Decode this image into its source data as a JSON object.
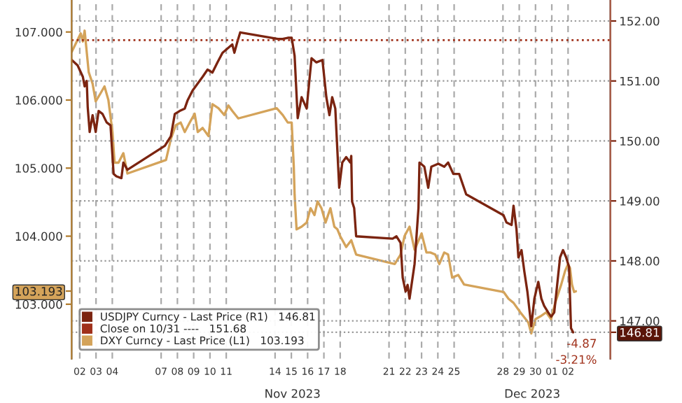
{
  "chart_data": {
    "type": "line",
    "series": [
      {
        "name": "USDJPY Curncy - Last Price (R1)   146.81",
        "color": "#7b2410",
        "axis": "y2",
        "x": [
          "2023-11-01T12:14",
          "2023-11-01T20:53",
          "2023-11-02T04:34",
          "2023-11-02T07:12",
          "2023-11-02T10:19",
          "2023-11-02T11:46",
          "2023-11-02T14:38",
          "2023-11-02T18:58",
          "2023-11-02T23:31",
          "2023-11-03T03:50",
          "2023-11-03T09:36",
          "2023-11-03T15:36",
          "2023-11-03T21:22",
          "2023-11-04T01:55",
          "2023-11-04T06:00",
          "2023-11-04T13:26",
          "2023-11-04T16:19",
          "2023-11-04T22:19",
          "2023-11-07T05:31",
          "2023-11-07T14:24",
          "2023-11-07T20:10",
          "2023-11-08T03:22",
          "2023-11-08T10:48",
          "2023-11-08T15:07",
          "2023-11-08T22:19",
          "2023-11-09T06:00",
          "2023-11-09T13:12",
          "2023-11-09T20:24",
          "2023-11-10T03:36",
          "2023-11-10T11:02",
          "2023-11-10T18:29",
          "2023-11-11T01:41",
          "2023-11-11T08:53",
          "2023-11-11T12:00",
          "2023-11-11T16:19",
          "2023-11-11T20:38",
          "2023-11-14T04:05",
          "2023-11-14T11:17",
          "2023-11-14T18:43",
          "2023-11-15T00:29",
          "2023-11-15T04:48",
          "2023-11-15T09:22",
          "2023-11-15T15:07",
          "2023-11-15T22:34",
          "2023-11-16T05:46",
          "2023-11-16T12:58",
          "2023-11-16T21:50",
          "2023-11-17T03:36",
          "2023-11-17T08:10",
          "2023-11-17T12:14",
          "2023-11-17T16:48",
          "2023-11-17T22:34",
          "2023-11-18T03:07",
          "2023-11-18T08:53",
          "2023-11-18T14:53",
          "2023-11-18T16:19",
          "2023-11-18T17:31",
          "2023-11-18T20:38",
          "2023-11-18T23:31",
          "2023-11-21T05:17",
          "2023-11-21T11:02",
          "2023-11-21T17:02",
          "2023-11-21T20:10",
          "2023-11-22T00:29",
          "2023-11-22T03:22",
          "2023-11-22T06:14",
          "2023-11-22T13:41",
          "2023-11-22T19:26",
          "2023-11-22T20:53",
          "2023-11-23T04:05",
          "2023-11-23T09:50",
          "2023-11-23T14:24",
          "2023-11-24T00:43",
          "2023-11-24T09:22",
          "2023-11-24T15:07",
          "2023-11-24T22:48",
          "2023-11-25T07:26",
          "2023-11-25T17:46",
          "2023-11-28T00:58",
          "2023-11-28T05:17",
          "2023-11-28T12:43",
          "2023-11-28T15:36",
          "2023-11-28T19:55",
          "2023-11-28T22:48",
          "2023-11-29T03:22",
          "2023-11-29T07:26",
          "2023-11-29T12:00",
          "2023-11-29T17:46",
          "2023-11-29T22:19",
          "2023-11-30T04:05",
          "2023-11-30T08:38",
          "2023-11-30T12:43",
          "2023-11-30T18:43",
          "2023-11-30T23:02",
          "2023-12-01T03:36",
          "2023-12-01T07:55",
          "2023-12-01T12:14",
          "2023-12-01T16:34",
          "2023-12-01T21:07",
          "2023-12-02T01:26",
          "2023-12-02T04:19",
          "2023-12-02T07:26"
        ],
        "values": [
          151.35,
          151.26,
          151.07,
          150.91,
          151.0,
          150.56,
          150.15,
          150.43,
          150.15,
          150.5,
          150.45,
          150.31,
          150.26,
          149.45,
          149.41,
          149.38,
          149.64,
          149.52,
          149.92,
          150.08,
          150.45,
          150.5,
          150.54,
          150.68,
          150.84,
          150.96,
          151.07,
          151.19,
          151.14,
          151.31,
          151.47,
          151.54,
          151.61,
          151.47,
          151.65,
          151.81,
          151.7,
          151.7,
          151.72,
          151.72,
          151.42,
          150.38,
          150.73,
          150.54,
          151.38,
          151.31,
          151.35,
          150.73,
          150.43,
          150.73,
          150.54,
          149.22,
          149.64,
          149.73,
          149.64,
          149.75,
          148.99,
          148.88,
          148.41,
          148.37,
          148.41,
          148.3,
          147.72,
          147.49,
          147.6,
          147.37,
          147.95,
          148.88,
          149.64,
          149.57,
          149.22,
          149.57,
          149.62,
          149.57,
          149.64,
          149.45,
          149.45,
          149.11,
          148.76,
          148.64,
          148.6,
          148.92,
          148.53,
          148.06,
          148.18,
          147.83,
          147.49,
          146.91,
          147.37,
          147.65,
          147.37,
          147.25,
          147.14,
          147.07,
          147.14,
          147.6,
          148.06,
          148.18,
          148.06,
          147.9,
          146.88,
          146.81
        ]
      },
      {
        "name": "DXY Curncy - Last Price (L1)   103.193",
        "color": "#d4a35a",
        "x": [
          "2023-11-01T12:14",
          "2023-11-02T01:26",
          "2023-11-02T04:34",
          "2023-11-02T07:12",
          "2023-11-02T13:12",
          "2023-11-02T18:58",
          "2023-11-02T23:31",
          "2023-11-03T06:43",
          "2023-11-03T12:29",
          "2023-11-03T18:14",
          "2023-11-04T00:14",
          "2023-11-04T03:22",
          "2023-11-04T09:07",
          "2023-11-04T16:19",
          "2023-11-04T22:19",
          "2023-11-07T07:12",
          "2023-11-07T14:24",
          "2023-11-07T21:36",
          "2023-11-08T04:48",
          "2023-11-08T10:48",
          "2023-11-08T18:14",
          "2023-11-09T01:26",
          "2023-11-09T06:00",
          "2023-11-09T13:12",
          "2023-11-09T21:50",
          "2023-11-10T03:36",
          "2023-11-10T12:29",
          "2023-11-10T21:07",
          "2023-11-11T03:07",
          "2023-11-11T08:53",
          "2023-11-11T17:46",
          "2023-11-14T02:24",
          "2023-11-14T11:17",
          "2023-11-14T18:43",
          "2023-11-15T00:29",
          "2023-11-15T03:36",
          "2023-11-15T04:48",
          "2023-11-15T07:41",
          "2023-11-15T15:07",
          "2023-11-15T22:34",
          "2023-11-16T04:19",
          "2023-11-16T10:05",
          "2023-11-16T14:38",
          "2023-11-16T20:24",
          "2023-11-17T02:24",
          "2023-11-17T09:36",
          "2023-11-17T15:22",
          "2023-11-17T19:55",
          "2023-11-18T00:00",
          "2023-11-18T08:53",
          "2023-11-18T16:19",
          "2023-11-18T23:31",
          "2023-11-21T08:24",
          "2023-11-21T17:02",
          "2023-11-21T22:48",
          "2023-11-22T06:14",
          "2023-11-22T13:41",
          "2023-11-23T00:00",
          "2023-11-23T07:12",
          "2023-11-23T12:58",
          "2023-11-23T20:10",
          "2023-11-24T02:10",
          "2023-11-24T09:22",
          "2023-11-24T15:07",
          "2023-11-24T21:07",
          "2023-11-25T06:00",
          "2023-11-25T14:38",
          "2023-11-28T00:58",
          "2023-11-28T08:10",
          "2023-11-28T15:36",
          "2023-11-29T01:41",
          "2023-11-29T13:26",
          "2023-11-29T17:46",
          "2023-11-29T23:46",
          "2023-11-30T06:58",
          "2023-11-30T15:50",
          "2023-11-30T23:02",
          "2023-12-01T05:02",
          "2023-12-01T13:55",
          "2023-12-01T19:41",
          "2023-12-02T00:00",
          "2023-12-02T02:53",
          "2023-12-02T05:46",
          "2023-12-02T08:53",
          "2023-12-02T11:31"
        ],
        "values": [
          106.71,
          106.98,
          106.86,
          107.02,
          106.41,
          106.24,
          105.98,
          106.1,
          106.2,
          106.0,
          105.53,
          105.08,
          105.08,
          105.22,
          104.92,
          105.12,
          105.43,
          105.63,
          105.67,
          105.53,
          105.67,
          105.8,
          105.53,
          105.59,
          105.47,
          105.94,
          105.88,
          105.78,
          105.92,
          105.84,
          105.73,
          105.88,
          105.78,
          105.67,
          105.67,
          105.02,
          104.61,
          104.1,
          104.14,
          104.2,
          104.41,
          104.31,
          104.51,
          104.41,
          104.2,
          104.41,
          104.14,
          104.1,
          104.0,
          103.84,
          103.94,
          103.73,
          103.59,
          103.73,
          104.0,
          104.14,
          103.8,
          104.04,
          103.76,
          103.76,
          103.73,
          103.59,
          103.76,
          103.73,
          103.39,
          103.43,
          103.29,
          103.18,
          103.08,
          103.02,
          102.88,
          102.73,
          102.57,
          102.78,
          102.82,
          102.88,
          102.78,
          103.02,
          103.29,
          103.49,
          103.59,
          103.53,
          103.29,
          103.18,
          103.19
        ]
      }
    ],
    "ref_lines": [
      {
        "axis": "y2",
        "value": 151.68,
        "label": "Close on 10/31 ----   151.68",
        "color": "#a0301a",
        "line_style": "dotted"
      }
    ],
    "xlim": [
      "2023-11-01T12:00",
      "2023-12-04T14:24"
    ],
    "xticks": [
      {
        "value": "2023-11-02",
        "label": "02"
      },
      {
        "value": "2023-11-03",
        "label": "03"
      },
      {
        "value": "2023-11-04",
        "label": "04"
      },
      {
        "value": "2023-11-07",
        "label": "07"
      },
      {
        "value": "2023-11-08",
        "label": "08"
      },
      {
        "value": "2023-11-09",
        "label": "09"
      },
      {
        "value": "2023-11-10",
        "label": "10"
      },
      {
        "value": "2023-11-11",
        "label": "11"
      },
      {
        "value": "2023-11-14",
        "label": "14"
      },
      {
        "value": "2023-11-15",
        "label": "15"
      },
      {
        "value": "2023-11-16",
        "label": "16"
      },
      {
        "value": "2023-11-17",
        "label": "17"
      },
      {
        "value": "2023-11-18",
        "label": "18"
      },
      {
        "value": "2023-11-21",
        "label": "21"
      },
      {
        "value": "2023-11-22",
        "label": "22"
      },
      {
        "value": "2023-11-23",
        "label": "23"
      },
      {
        "value": "2023-11-24",
        "label": "24"
      },
      {
        "value": "2023-11-25",
        "label": "25"
      },
      {
        "value": "2023-11-28",
        "label": "28"
      },
      {
        "value": "2023-11-29",
        "label": "29"
      },
      {
        "value": "2023-11-30",
        "label": "30"
      },
      {
        "value": "2023-12-01",
        "label": "01"
      },
      {
        "value": "2023-12-02",
        "label": "02"
      }
    ],
    "ylim": [
      102.2,
      107.47
    ],
    "yticks": [
      {
        "value": 103,
        "label": "103.000"
      },
      {
        "value": 103.193,
        "label": "103.193"
      },
      {
        "value": 104,
        "label": "104.000"
      },
      {
        "value": 105,
        "label": "105.000"
      },
      {
        "value": 106,
        "label": "106.000"
      },
      {
        "value": 107,
        "label": "107.000"
      }
    ],
    "y2lim": [
      146.37,
      152.35
    ],
    "y2ticks": [
      {
        "value": 146.81,
        "label": "146.81"
      },
      {
        "value": 147,
        "label": "147.00"
      },
      {
        "value": 148,
        "label": "148.00"
      },
      {
        "value": 149,
        "label": "149.00"
      },
      {
        "value": 150,
        "label": "150.00"
      },
      {
        "value": 151,
        "label": "151.00"
      },
      {
        "value": 152,
        "label": "152.00"
      }
    ],
    "annotations": [
      "-4.87",
      "-3.21%",
      "Nov 2023",
      "Dec 2023"
    ],
    "grid": true,
    "legend": "bottom left",
    "line_style": "solid",
    "marker": "none"
  }
}
